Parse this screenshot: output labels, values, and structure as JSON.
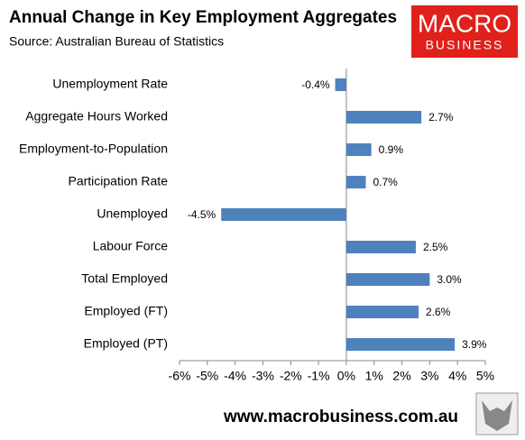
{
  "chart_data": {
    "type": "hbar",
    "title": "Annual Change in Key Employment Aggregates",
    "subtitle": "Source: Australian Bureau of Statistics",
    "categories": [
      "Unemployment Rate",
      "Aggregate Hours Worked",
      "Employment-to-Population",
      "Participation Rate",
      "Unemployed",
      "Labour Force",
      "Total Employed",
      "Employed (FT)",
      "Employed (PT)"
    ],
    "values": [
      -0.4,
      2.7,
      0.9,
      0.7,
      -4.5,
      2.5,
      3.0,
      2.6,
      3.9
    ],
    "value_labels": [
      "-0.4%",
      "2.7%",
      "0.9%",
      "0.7%",
      "-4.5%",
      "2.5%",
      "3.0%",
      "2.6%",
      "3.9%"
    ],
    "color": "#4f81bd",
    "xlim": [
      -6,
      5
    ],
    "xticks": [
      {
        "value": -6,
        "label": "-6%"
      },
      {
        "value": -5,
        "label": "-5%"
      },
      {
        "value": -4,
        "label": "-4%"
      },
      {
        "value": -3,
        "label": "-3%"
      },
      {
        "value": -2,
        "label": "-2%"
      },
      {
        "value": -1,
        "label": "-1%"
      },
      {
        "value": 0,
        "label": "0%"
      },
      {
        "value": 1,
        "label": "1%"
      },
      {
        "value": 2,
        "label": "2%"
      },
      {
        "value": 3,
        "label": "3%"
      },
      {
        "value": 4,
        "label": "4%"
      },
      {
        "value": 5,
        "label": "5%"
      }
    ],
    "grid": false
  },
  "logo": {
    "line1": "MACRO",
    "line2": "BUSINESS"
  },
  "footer": "www.macrobusiness.com.au"
}
